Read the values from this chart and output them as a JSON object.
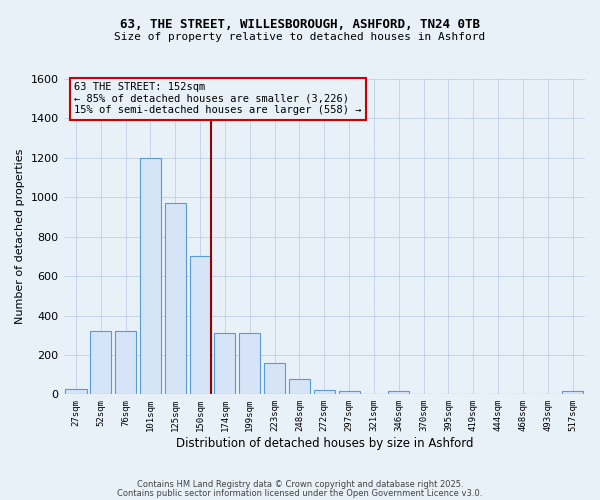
{
  "title1": "63, THE STREET, WILLESBOROUGH, ASHFORD, TN24 0TB",
  "title2": "Size of property relative to detached houses in Ashford",
  "xlabel": "Distribution of detached houses by size in Ashford",
  "ylabel": "Number of detached properties",
  "categories": [
    "27sqm",
    "52sqm",
    "76sqm",
    "101sqm",
    "125sqm",
    "150sqm",
    "174sqm",
    "199sqm",
    "223sqm",
    "248sqm",
    "272sqm",
    "297sqm",
    "321sqm",
    "346sqm",
    "370sqm",
    "395sqm",
    "419sqm",
    "444sqm",
    "468sqm",
    "493sqm",
    "517sqm"
  ],
  "values": [
    25,
    320,
    320,
    1200,
    970,
    700,
    310,
    310,
    160,
    80,
    20,
    15,
    0,
    15,
    0,
    0,
    0,
    0,
    0,
    0,
    15
  ],
  "bar_color": "#d6e4f7",
  "bar_edge_color": "#5b9bd5",
  "grid_color": "#b8cce4",
  "bg_color": "#e8f0f8",
  "annotation_box_color": "#cc0000",
  "vline_color": "#990000",
  "vline_position": 5.42,
  "annotation_text": "63 THE STREET: 152sqm\n← 85% of detached houses are smaller (3,226)\n15% of semi-detached houses are larger (558) →",
  "footer1": "Contains HM Land Registry data © Crown copyright and database right 2025.",
  "footer2": "Contains public sector information licensed under the Open Government Licence v3.0.",
  "ylim": [
    0,
    1600
  ],
  "yticks": [
    0,
    200,
    400,
    600,
    800,
    1000,
    1200,
    1400,
    1600
  ]
}
